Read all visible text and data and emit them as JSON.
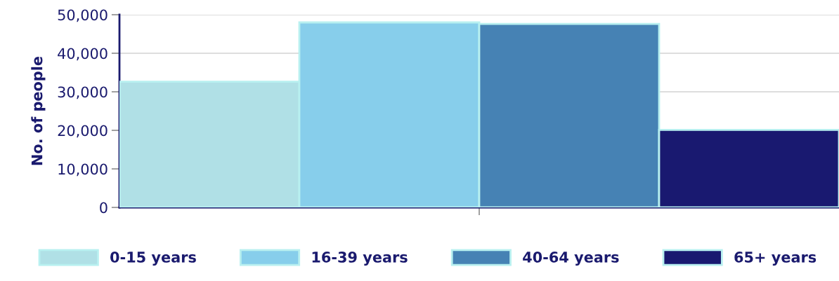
{
  "chart_data": {
    "type": "bar",
    "ylabel": "No. of people",
    "categories": [
      null
    ],
    "series": [
      {
        "name": "0-15 years",
        "color": "#b0e0e6",
        "values": [
          32600
        ]
      },
      {
        "name": "16-39 years",
        "color": "#87ceeb",
        "values": [
          48000
        ]
      },
      {
        "name": "40-64 years",
        "color": "#4682b4",
        "values": [
          47600
        ]
      },
      {
        "name": "65+ years",
        "color": "#191970",
        "values": [
          20100
        ]
      }
    ],
    "ylim": [
      0,
      50000
    ],
    "yticks": [
      {
        "value": 0,
        "label": "0"
      },
      {
        "value": 10000,
        "label": "10,000"
      },
      {
        "value": 20000,
        "label": "20,000"
      },
      {
        "value": 30000,
        "label": "30,000"
      },
      {
        "value": 40000,
        "label": "40,000"
      },
      {
        "value": 50000,
        "label": "50,000"
      }
    ],
    "grid": "y",
    "legend": "bottom"
  }
}
